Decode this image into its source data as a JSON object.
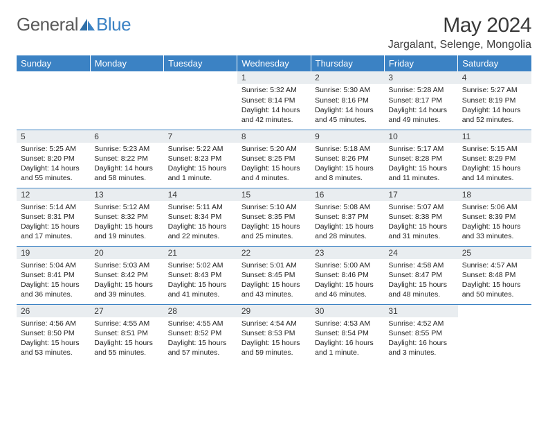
{
  "brand": {
    "word1": "General",
    "word2": "Blue"
  },
  "title": "May 2024",
  "location": "Jargalant, Selenge, Mongolia",
  "colors": {
    "header_bg": "#3b82c4",
    "header_text": "#ffffff",
    "daynum_bg": "#e9edf0",
    "border": "#3b82c4",
    "text": "#3a3a3a",
    "logo_gray": "#5a5a5a",
    "logo_blue": "#3b82c4"
  },
  "daysOfWeek": [
    "Sunday",
    "Monday",
    "Tuesday",
    "Wednesday",
    "Thursday",
    "Friday",
    "Saturday"
  ],
  "startOffset": 3,
  "cells": [
    {
      "n": "1",
      "sr": "5:32 AM",
      "ss": "8:14 PM",
      "dl": "14 hours and 42 minutes."
    },
    {
      "n": "2",
      "sr": "5:30 AM",
      "ss": "8:16 PM",
      "dl": "14 hours and 45 minutes."
    },
    {
      "n": "3",
      "sr": "5:28 AM",
      "ss": "8:17 PM",
      "dl": "14 hours and 49 minutes."
    },
    {
      "n": "4",
      "sr": "5:27 AM",
      "ss": "8:19 PM",
      "dl": "14 hours and 52 minutes."
    },
    {
      "n": "5",
      "sr": "5:25 AM",
      "ss": "8:20 PM",
      "dl": "14 hours and 55 minutes."
    },
    {
      "n": "6",
      "sr": "5:23 AM",
      "ss": "8:22 PM",
      "dl": "14 hours and 58 minutes."
    },
    {
      "n": "7",
      "sr": "5:22 AM",
      "ss": "8:23 PM",
      "dl": "15 hours and 1 minute."
    },
    {
      "n": "8",
      "sr": "5:20 AM",
      "ss": "8:25 PM",
      "dl": "15 hours and 4 minutes."
    },
    {
      "n": "9",
      "sr": "5:18 AM",
      "ss": "8:26 PM",
      "dl": "15 hours and 8 minutes."
    },
    {
      "n": "10",
      "sr": "5:17 AM",
      "ss": "8:28 PM",
      "dl": "15 hours and 11 minutes."
    },
    {
      "n": "11",
      "sr": "5:15 AM",
      "ss": "8:29 PM",
      "dl": "15 hours and 14 minutes."
    },
    {
      "n": "12",
      "sr": "5:14 AM",
      "ss": "8:31 PM",
      "dl": "15 hours and 17 minutes."
    },
    {
      "n": "13",
      "sr": "5:12 AM",
      "ss": "8:32 PM",
      "dl": "15 hours and 19 minutes."
    },
    {
      "n": "14",
      "sr": "5:11 AM",
      "ss": "8:34 PM",
      "dl": "15 hours and 22 minutes."
    },
    {
      "n": "15",
      "sr": "5:10 AM",
      "ss": "8:35 PM",
      "dl": "15 hours and 25 minutes."
    },
    {
      "n": "16",
      "sr": "5:08 AM",
      "ss": "8:37 PM",
      "dl": "15 hours and 28 minutes."
    },
    {
      "n": "17",
      "sr": "5:07 AM",
      "ss": "8:38 PM",
      "dl": "15 hours and 31 minutes."
    },
    {
      "n": "18",
      "sr": "5:06 AM",
      "ss": "8:39 PM",
      "dl": "15 hours and 33 minutes."
    },
    {
      "n": "19",
      "sr": "5:04 AM",
      "ss": "8:41 PM",
      "dl": "15 hours and 36 minutes."
    },
    {
      "n": "20",
      "sr": "5:03 AM",
      "ss": "8:42 PM",
      "dl": "15 hours and 39 minutes."
    },
    {
      "n": "21",
      "sr": "5:02 AM",
      "ss": "8:43 PM",
      "dl": "15 hours and 41 minutes."
    },
    {
      "n": "22",
      "sr": "5:01 AM",
      "ss": "8:45 PM",
      "dl": "15 hours and 43 minutes."
    },
    {
      "n": "23",
      "sr": "5:00 AM",
      "ss": "8:46 PM",
      "dl": "15 hours and 46 minutes."
    },
    {
      "n": "24",
      "sr": "4:58 AM",
      "ss": "8:47 PM",
      "dl": "15 hours and 48 minutes."
    },
    {
      "n": "25",
      "sr": "4:57 AM",
      "ss": "8:48 PM",
      "dl": "15 hours and 50 minutes."
    },
    {
      "n": "26",
      "sr": "4:56 AM",
      "ss": "8:50 PM",
      "dl": "15 hours and 53 minutes."
    },
    {
      "n": "27",
      "sr": "4:55 AM",
      "ss": "8:51 PM",
      "dl": "15 hours and 55 minutes."
    },
    {
      "n": "28",
      "sr": "4:55 AM",
      "ss": "8:52 PM",
      "dl": "15 hours and 57 minutes."
    },
    {
      "n": "29",
      "sr": "4:54 AM",
      "ss": "8:53 PM",
      "dl": "15 hours and 59 minutes."
    },
    {
      "n": "30",
      "sr": "4:53 AM",
      "ss": "8:54 PM",
      "dl": "16 hours and 1 minute."
    },
    {
      "n": "31",
      "sr": "4:52 AM",
      "ss": "8:55 PM",
      "dl": "16 hours and 3 minutes."
    }
  ],
  "labels": {
    "sunrise": "Sunrise:",
    "sunset": "Sunset:",
    "daylight": "Daylight:"
  }
}
